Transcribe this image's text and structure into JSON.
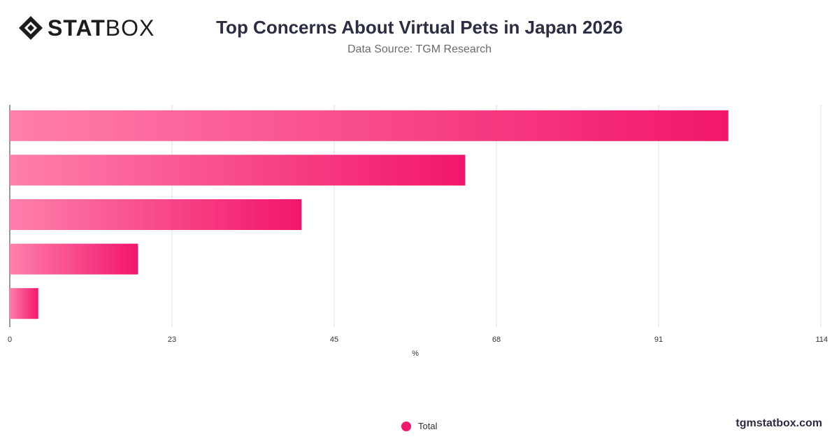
{
  "header": {
    "logo_bold": "STAT",
    "logo_light": "BOX",
    "title": "Top Concerns About Virtual Pets in Japan 2026",
    "subtitle": "Data Source: TGM Research"
  },
  "footer": {
    "website": "tgmstatbox.com"
  },
  "legend": {
    "label": "Total",
    "color": "#f2196b"
  },
  "chart_data": {
    "type": "bar",
    "orientation": "horizontal",
    "categories": [
      "",
      "",
      "",
      "",
      ""
    ],
    "series": [
      {
        "name": "Total",
        "values": [
          101,
          64,
          41,
          18,
          4
        ]
      }
    ],
    "xlabel": "%",
    "ylabel": "",
    "xlim": [
      0,
      114
    ],
    "xticks": [
      "0",
      "23",
      "45",
      "68",
      "91",
      "114"
    ],
    "grid": true,
    "legend_position": "bottom",
    "bar_gradient": [
      "#ff7fab",
      "#f2166a"
    ]
  }
}
